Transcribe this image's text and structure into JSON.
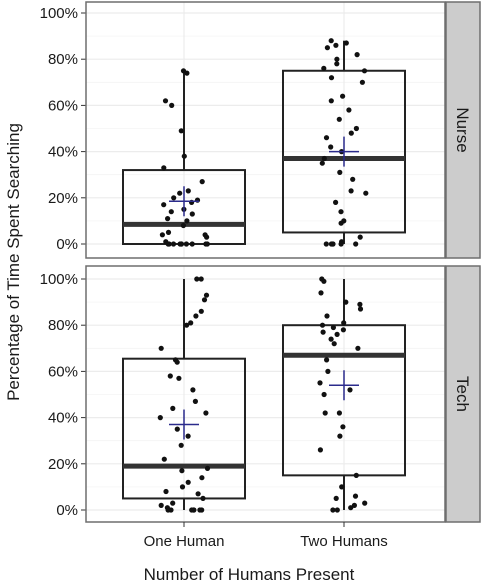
{
  "chart_data": {
    "type": "box",
    "xlabel": "Number of Humans Present",
    "ylabel": "Percentage of Time Spent Searching",
    "categories": [
      "One Human",
      "Two Humans"
    ],
    "y_ticks": [
      "0%",
      "20%",
      "40%",
      "60%",
      "80%",
      "100%"
    ],
    "ylim": [
      0,
      100
    ],
    "grid": true,
    "colors": {
      "box_stroke": "#222222",
      "point": "#111111",
      "mean_marker": "#2b2b8c",
      "strip_fill": "#cccccc",
      "grid": "#ececec"
    },
    "panels": [
      {
        "strip_label": "Nurse",
        "groups": [
          {
            "category": "One Human",
            "box": {
              "q1": 0,
              "median": 8.5,
              "q3": 32,
              "whisker_low": 0,
              "whisker_high": 75
            },
            "mean": 18.5,
            "points": [
              75,
              74,
              62,
              60,
              49,
              38,
              33,
              27,
              23,
              22,
              20,
              19,
              18,
              17,
              15,
              14,
              13,
              11,
              10,
              8,
              5,
              4,
              4,
              3,
              1,
              0,
              0,
              0,
              0,
              0,
              0,
              0,
              0,
              0,
              0
            ]
          },
          {
            "category": "Two Humans",
            "box": {
              "q1": 5,
              "median": 37,
              "q3": 75,
              "whisker_low": 0,
              "whisker_high": 88
            },
            "mean": 40,
            "points": [
              88,
              87,
              86,
              85,
              82,
              80,
              78,
              76,
              75,
              72,
              70,
              64,
              62,
              58,
              54,
              50,
              48,
              46,
              42,
              40,
              37,
              35,
              31,
              28,
              23,
              22,
              18,
              14,
              10,
              9,
              3,
              1,
              0,
              0,
              0,
              0,
              0,
              0
            ]
          }
        ]
      },
      {
        "strip_label": "Tech",
        "groups": [
          {
            "category": "One Human",
            "box": {
              "q1": 5,
              "median": 19,
              "q3": 65.5,
              "whisker_low": 0,
              "whisker_high": 100
            },
            "mean": 37,
            "points": [
              100,
              100,
              93,
              91,
              86,
              84,
              81,
              80,
              70,
              65,
              64,
              58,
              57,
              52,
              47,
              44,
              42,
              40,
              35,
              32,
              28,
              22,
              18,
              17,
              14,
              12,
              10,
              8,
              7,
              5,
              3,
              2,
              1,
              0,
              0,
              0,
              0,
              0,
              0,
              0
            ]
          },
          {
            "category": "Two Humans",
            "box": {
              "q1": 15,
              "median": 67,
              "q3": 80,
              "whisker_low": 0,
              "whisker_high": 100
            },
            "mean": 54,
            "points": [
              100,
              99,
              94,
              90,
              89,
              87,
              84,
              81,
              80,
              79,
              78,
              77,
              76,
              74,
              72,
              70,
              65,
              60,
              55,
              52,
              50,
              42,
              42,
              36,
              32,
              26,
              15,
              10,
              6,
              5,
              3,
              2,
              1,
              0,
              0
            ]
          }
        ]
      }
    ]
  }
}
